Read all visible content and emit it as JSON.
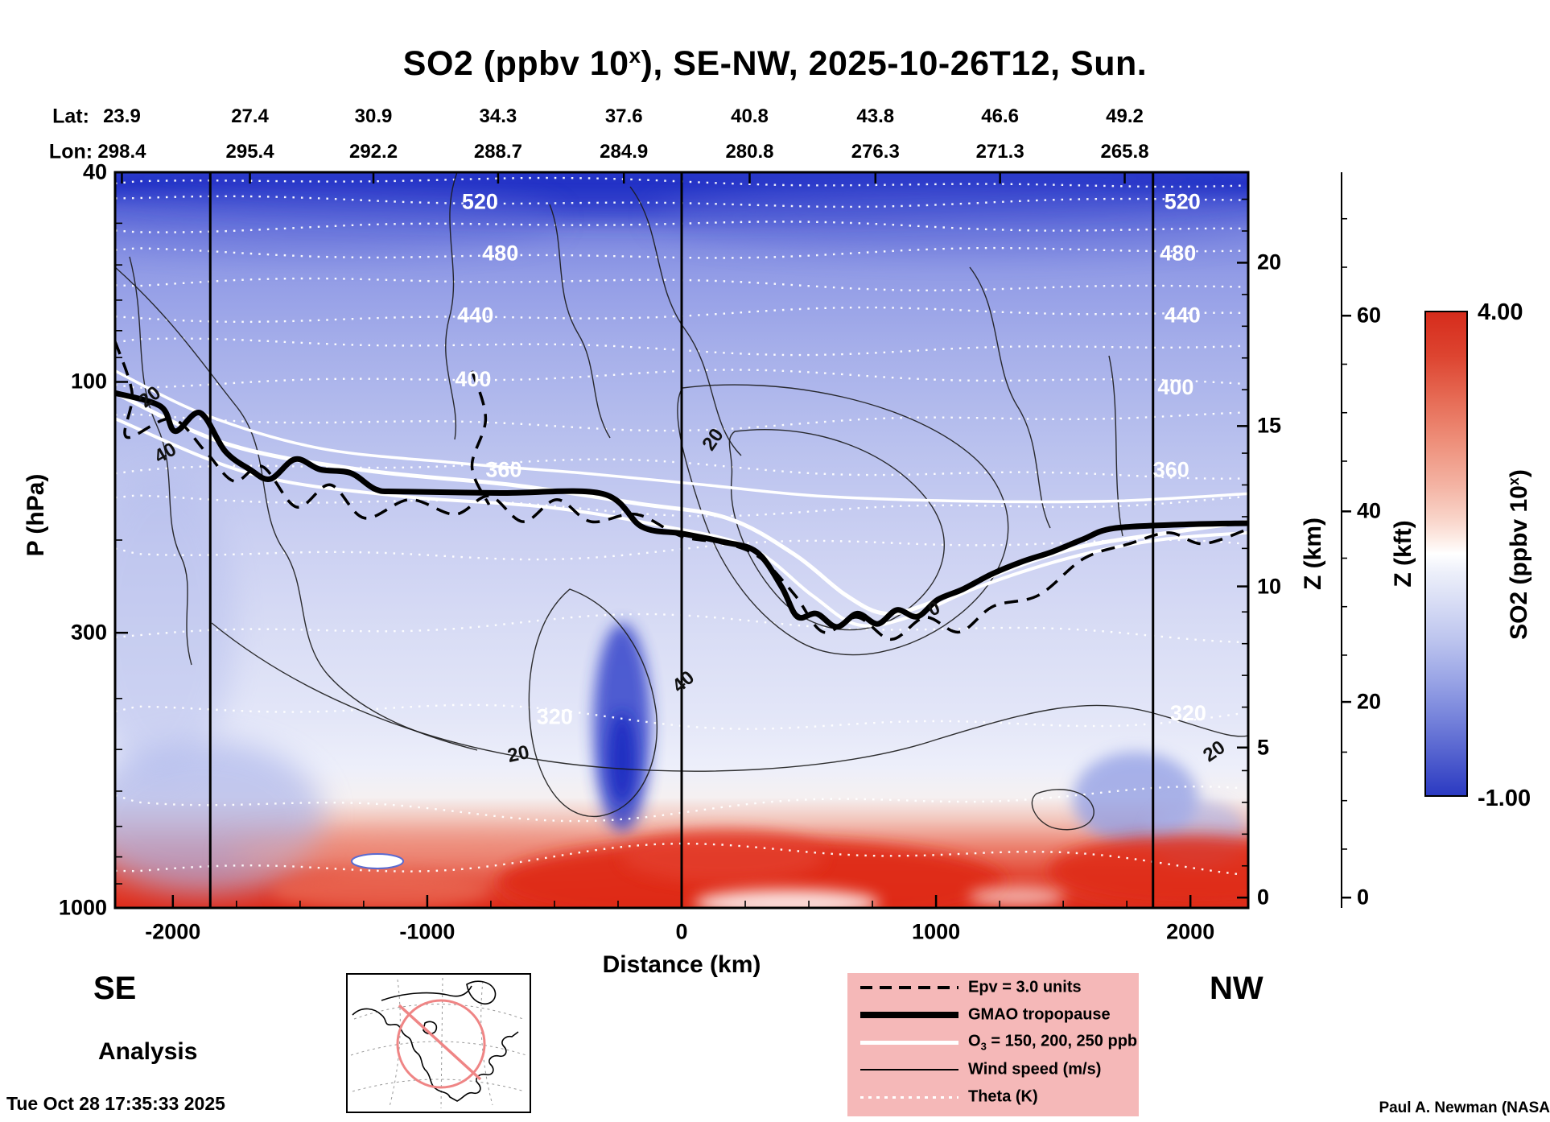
{
  "title": {
    "prefix": "SO2 (ppbv 10",
    "sup": "x",
    "suffix": "), SE-NW, 2025-10-26T12, Sun."
  },
  "top_axis": {
    "lat_label": "Lat:",
    "lon_label": "Lon:",
    "lat_values": [
      "23.9",
      "27.4",
      "30.9",
      "34.3",
      "37.6",
      "40.8",
      "43.8",
      "46.6",
      "49.2"
    ],
    "lon_values": [
      "298.4",
      "295.4",
      "292.2",
      "288.7",
      "284.9",
      "280.8",
      "276.3",
      "271.3",
      "265.8"
    ],
    "tick_xf": [
      0.006,
      0.119,
      0.228,
      0.338,
      0.449,
      0.56,
      0.671,
      0.781,
      0.891
    ]
  },
  "left_axis": {
    "label": "P (hPa)",
    "ticks": [
      {
        "label": "40",
        "yf": 0.0
      },
      {
        "label": "100",
        "yf": 0.285
      },
      {
        "label": "300",
        "yf": 0.626
      },
      {
        "label": "1000",
        "yf": 1.0
      }
    ]
  },
  "bottom_axis": {
    "label": "Distance (km)",
    "ticks": [
      {
        "label": "-2000",
        "xf": 0.051
      },
      {
        "label": "-1000",
        "xf": 0.2755
      },
      {
        "label": "0",
        "xf": 0.5
      },
      {
        "label": "1000",
        "xf": 0.7245
      },
      {
        "label": "2000",
        "xf": 0.949
      }
    ]
  },
  "right_axis_km": {
    "label": "Z (km)",
    "ticks": [
      {
        "label": "20",
        "yf": 0.123
      },
      {
        "label": "15",
        "yf": 0.345
      },
      {
        "label": "10",
        "yf": 0.563
      },
      {
        "label": "5",
        "yf": 0.782
      },
      {
        "label": "0",
        "yf": 0.986
      }
    ]
  },
  "right_axis_kft": {
    "label": "Z (kft)",
    "ticks": [
      {
        "label": "60",
        "yf": 0.195
      },
      {
        "label": "40",
        "yf": 0.461
      },
      {
        "label": "20",
        "yf": 0.72
      },
      {
        "label": "0",
        "yf": 0.986
      }
    ]
  },
  "colorbar": {
    "label_prefix": "SO2 (ppbv 10",
    "label_sup": "x",
    "label_suffix": ")",
    "max": "4.00",
    "min": "-1.00",
    "stops": [
      "#d62c1c 0%",
      "#dd4430 9%",
      "#e66b55 18%",
      "#ee907b 27%",
      "#f4b4a4 36%",
      "#f9d5ca 43%",
      "#fdece6 47%",
      "#ffffff 50%",
      "#eceffa 54%",
      "#d8ddf5 60%",
      "#bcc4ee 68%",
      "#9aa5e6 76%",
      "#7683db 84%",
      "#515fce 92%",
      "#2b3ac2 100%"
    ]
  },
  "corner_labels": {
    "left": "SE",
    "right": "NW"
  },
  "footer": {
    "analysis": "Analysis",
    "timestamp": "Tue Oct 28 17:35:33 2025",
    "credit": "Paul A. Newman (NASA"
  },
  "legend": {
    "background": "#f5b8b8",
    "items": [
      {
        "style": "dashed-black",
        "label": "Epv = 3.0 units"
      },
      {
        "style": "thick-black",
        "label": "GMAO tropopause"
      },
      {
        "style": "white-solid",
        "label_prefix": "O",
        "label_sub": "3",
        "label_suffix": " = 150, 200, 250 ppb"
      },
      {
        "style": "thin-black",
        "label": "Wind speed (m/s)"
      },
      {
        "style": "white-dotted",
        "label": "Theta (K)"
      }
    ]
  },
  "map": {
    "accent_color": "#ef8585"
  },
  "chart_data": {
    "type": "heatmap",
    "subtype": "vertical-cross-section",
    "title": "SO2 (ppbv 10^x), SE-NW, 2025-10-26T12, Sun.",
    "field": "SO2 (ppbv 10^x)",
    "orientation": {
      "left": "SE",
      "right": "NW"
    },
    "x_axis": {
      "label": "Distance (km)",
      "ticks": [
        -2000,
        -1000,
        0,
        1000,
        2000
      ],
      "range_km": [
        -2230,
        2230
      ]
    },
    "y_axis_pressure": {
      "label": "P (hPa)",
      "scale": "log",
      "ticks": [
        40,
        100,
        300,
        1000
      ]
    },
    "y_axis_altitude_km": {
      "label": "Z (km)",
      "ticks": [
        0,
        5,
        10,
        15,
        20
      ]
    },
    "y_axis_altitude_kft": {
      "label": "Z (kft)",
      "ticks": [
        0,
        20,
        40,
        60
      ]
    },
    "colorbar": {
      "label": "SO2 (ppbv 10^x)",
      "min": -1.0,
      "max": 4.0,
      "mid_white": 1.5
    },
    "top_axis_lat": [
      23.9,
      27.4,
      30.9,
      34.3,
      37.6,
      40.8,
      43.8,
      46.6,
      49.2
    ],
    "top_axis_lon": [
      298.4,
      295.4,
      292.2,
      288.7,
      284.9,
      280.8,
      276.3,
      271.3,
      265.8
    ],
    "field_summary": [
      "Strongly negative SO2 (deep blue, ~ -1) in the upper stratosphere near 40 hPa",
      "Values increase smoothly (light blue to white) descending through the troposphere",
      "Narrow deep-blue minimum plume near x = -200 km between roughly 400 and 800 hPa",
      "High SO2 (red, up to ~4) in the boundary layer below ~800 hPa, strongest between 0 and 1500 km and near the NW edge"
    ],
    "theta_contours_K": {
      "labeled_values": [
        520,
        480,
        440,
        400,
        360,
        320
      ],
      "lines": [
        {
          "value": 545,
          "yf": 0.014
        },
        {
          "value": 520,
          "yf": 0.04
        },
        {
          "value": 500,
          "yf": 0.074
        },
        {
          "value": 480,
          "yf": 0.11
        },
        {
          "value": 460,
          "yf": 0.152
        },
        {
          "value": 440,
          "yf": 0.194
        },
        {
          "value": 420,
          "yf": 0.237
        },
        {
          "value": 400,
          "yf": 0.281
        },
        {
          "value": 380,
          "yf": 0.338
        },
        {
          "value": 360,
          "yf": 0.404
        },
        {
          "value": 350,
          "yf": 0.452
        },
        {
          "value": 340,
          "yf": 0.512
        },
        {
          "value": 330,
          "yf": 0.62
        },
        {
          "value": 320,
          "yf": 0.74
        },
        {
          "value": 310,
          "yf": 0.858
        },
        {
          "value": 300,
          "yf": 0.935
        }
      ]
    },
    "theta_labels": [
      {
        "value": "520",
        "xf": 0.322,
        "yf": 0.04
      },
      {
        "value": "520",
        "xf": 0.942,
        "yf": 0.04
      },
      {
        "value": "480",
        "xf": 0.34,
        "yf": 0.11
      },
      {
        "value": "480",
        "xf": 0.938,
        "yf": 0.11
      },
      {
        "value": "440",
        "xf": 0.318,
        "yf": 0.194
      },
      {
        "value": "440",
        "xf": 0.942,
        "yf": 0.194
      },
      {
        "value": "400",
        "xf": 0.316,
        "yf": 0.281
      },
      {
        "value": "400",
        "xf": 0.936,
        "yf": 0.292
      },
      {
        "value": "360",
        "xf": 0.343,
        "yf": 0.404
      },
      {
        "value": "360",
        "xf": 0.932,
        "yf": 0.404
      },
      {
        "value": "320",
        "xf": 0.388,
        "yf": 0.74
      },
      {
        "value": "320",
        "xf": 0.947,
        "yf": 0.735
      }
    ],
    "wind_speed_contours_ms": {
      "labeled_values": [
        0,
        20,
        40
      ],
      "labels": [
        {
          "text": "20",
          "xf": 0.034,
          "yf": 0.312,
          "rot": -38
        },
        {
          "text": "40",
          "xf": 0.047,
          "yf": 0.389,
          "rot": -30
        },
        {
          "text": "20",
          "xf": 0.532,
          "yf": 0.368,
          "rot": -55
        },
        {
          "text": "0",
          "xf": 0.725,
          "yf": 0.601,
          "rot": -25
        },
        {
          "text": "40",
          "xf": 0.505,
          "yf": 0.699,
          "rot": -40
        },
        {
          "text": "20",
          "xf": 0.357,
          "yf": 0.799,
          "rot": -12
        },
        {
          "text": "20",
          "xf": 0.973,
          "yf": 0.794,
          "rot": -35
        }
      ]
    },
    "epv_contour": {
      "value": 3.0,
      "units": "units",
      "points": [
        [
          0,
          0.23
        ],
        [
          0.015,
          0.3
        ],
        [
          0.01,
          0.36
        ],
        [
          0.05,
          0.335
        ],
        [
          0.08,
          0.38
        ],
        [
          0.105,
          0.42
        ],
        [
          0.13,
          0.4
        ],
        [
          0.16,
          0.455
        ],
        [
          0.19,
          0.425
        ],
        [
          0.22,
          0.47
        ],
        [
          0.26,
          0.445
        ],
        [
          0.3,
          0.465
        ],
        [
          0.33,
          0.44
        ],
        [
          0.36,
          0.475
        ],
        [
          0.39,
          0.445
        ],
        [
          0.42,
          0.475
        ],
        [
          0.46,
          0.465
        ],
        [
          0.5,
          0.495
        ],
        [
          0.54,
          0.505
        ],
        [
          0.57,
          0.525
        ],
        [
          0.6,
          0.575
        ],
        [
          0.625,
          0.625
        ],
        [
          0.655,
          0.605
        ],
        [
          0.685,
          0.635
        ],
        [
          0.715,
          0.605
        ],
        [
          0.745,
          0.625
        ],
        [
          0.775,
          0.59
        ],
        [
          0.815,
          0.575
        ],
        [
          0.855,
          0.525
        ],
        [
          0.895,
          0.505
        ],
        [
          0.93,
          0.49
        ],
        [
          0.96,
          0.505
        ],
        [
          1,
          0.485
        ]
      ],
      "branch_points": [
        [
          0.315,
          0.27
        ],
        [
          0.327,
          0.335
        ],
        [
          0.315,
          0.4
        ],
        [
          0.33,
          0.452
        ]
      ]
    },
    "gmao_tropopause_points": [
      [
        0,
        0.3
      ],
      [
        0.04,
        0.318
      ],
      [
        0.053,
        0.352
      ],
      [
        0.075,
        0.327
      ],
      [
        0.097,
        0.379
      ],
      [
        0.119,
        0.404
      ],
      [
        0.137,
        0.417
      ],
      [
        0.159,
        0.39
      ],
      [
        0.181,
        0.404
      ],
      [
        0.208,
        0.409
      ],
      [
        0.23,
        0.431
      ],
      [
        0.252,
        0.434
      ],
      [
        0.34,
        0.436
      ],
      [
        0.43,
        0.437
      ],
      [
        0.465,
        0.482
      ],
      [
        0.5,
        0.491
      ],
      [
        0.535,
        0.502
      ],
      [
        0.566,
        0.516
      ],
      [
        0.588,
        0.563
      ],
      [
        0.602,
        0.604
      ],
      [
        0.619,
        0.6
      ],
      [
        0.637,
        0.618
      ],
      [
        0.655,
        0.6
      ],
      [
        0.673,
        0.614
      ],
      [
        0.69,
        0.595
      ],
      [
        0.708,
        0.604
      ],
      [
        0.726,
        0.581
      ],
      [
        0.748,
        0.567
      ],
      [
        0.774,
        0.546
      ],
      [
        0.801,
        0.529
      ],
      [
        0.827,
        0.516
      ],
      [
        0.854,
        0.499
      ],
      [
        0.881,
        0.484
      ],
      [
        0.94,
        0.479
      ],
      [
        1,
        0.477
      ]
    ],
    "o3_contours_ppb": {
      "values": [
        150,
        200,
        250
      ],
      "lines": [
        [
          [
            0,
            0.27
          ],
          [
            0.08,
            0.33
          ],
          [
            0.18,
            0.375
          ],
          [
            0.3,
            0.395
          ],
          [
            0.42,
            0.41
          ],
          [
            0.52,
            0.425
          ],
          [
            0.62,
            0.44
          ],
          [
            0.75,
            0.447
          ],
          [
            0.88,
            0.447
          ],
          [
            1,
            0.437
          ]
        ],
        [
          [
            0,
            0.3
          ],
          [
            0.1,
            0.37
          ],
          [
            0.22,
            0.405
          ],
          [
            0.35,
            0.425
          ],
          [
            0.46,
            0.45
          ],
          [
            0.54,
            0.47
          ],
          [
            0.6,
            0.52
          ],
          [
            0.645,
            0.575
          ],
          [
            0.68,
            0.6
          ],
          [
            0.72,
            0.585
          ],
          [
            0.78,
            0.545
          ],
          [
            0.85,
            0.51
          ],
          [
            0.93,
            0.49
          ],
          [
            1,
            0.475
          ]
        ],
        [
          [
            0,
            0.335
          ],
          [
            0.12,
            0.41
          ],
          [
            0.25,
            0.44
          ],
          [
            0.38,
            0.455
          ],
          [
            0.48,
            0.48
          ],
          [
            0.56,
            0.51
          ],
          [
            0.615,
            0.575
          ],
          [
            0.655,
            0.615
          ],
          [
            0.7,
            0.605
          ],
          [
            0.76,
            0.565
          ],
          [
            0.84,
            0.525
          ],
          [
            0.92,
            0.5
          ],
          [
            1,
            0.49
          ]
        ]
      ]
    },
    "vertical_reference_lines_km": [
      -1850,
      0,
      1850
    ],
    "vertical_lines_xf": [
      0.084,
      0.5,
      0.916
    ],
    "background_stops": [
      {
        "o": "0%",
        "c": "#3847d2"
      },
      {
        "o": "1.5%",
        "c": "#2433c6"
      },
      {
        "o": "4%",
        "c": "#4c5ad4"
      },
      {
        "o": "8%",
        "c": "#7d88e0"
      },
      {
        "o": "14%",
        "c": "#929ce6"
      },
      {
        "o": "24%",
        "c": "#a6afea"
      },
      {
        "o": "37%",
        "c": "#b9c1ee"
      },
      {
        "o": "50%",
        "c": "#cbd0f2"
      },
      {
        "o": "63%",
        "c": "#d9ddf5"
      },
      {
        "o": "74%",
        "c": "#e3e6f8"
      },
      {
        "o": "81%",
        "c": "#edeffa"
      },
      {
        "o": "85%",
        "c": "#f5f0f1"
      },
      {
        "o": "88%",
        "c": "#f2c6bc"
      },
      {
        "o": "91.5%",
        "c": "#ec8472"
      },
      {
        "o": "95%",
        "c": "#e44f3c"
      },
      {
        "o": "100%",
        "c": "#dd2b1a"
      }
    ]
  }
}
